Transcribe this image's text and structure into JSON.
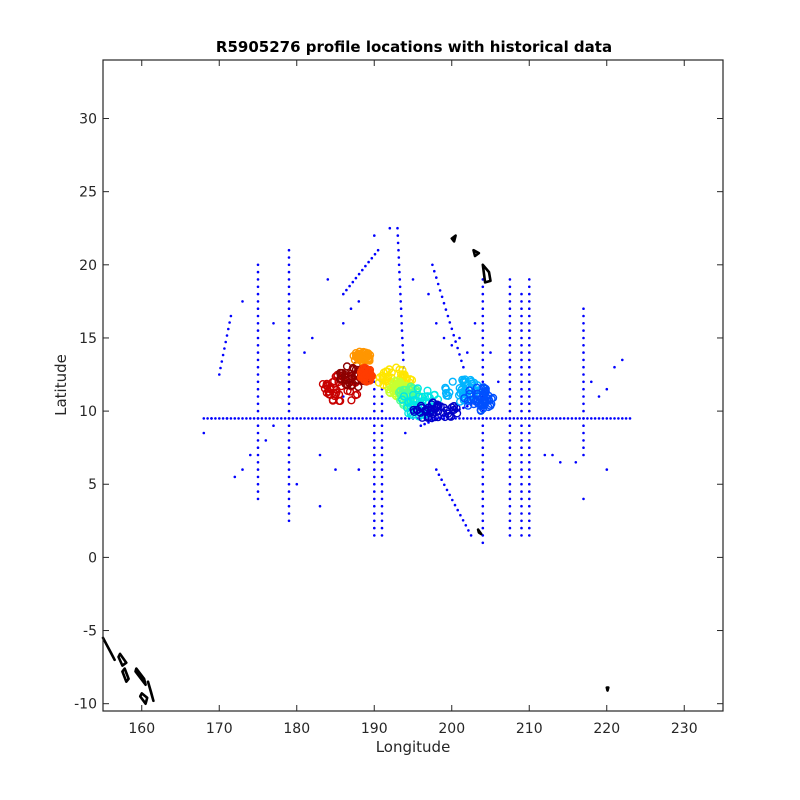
{
  "chart_data": {
    "type": "scatter",
    "title": "R5905276 profile locations with historical data",
    "xlabel": "Longitude",
    "ylabel": "Latitude",
    "xlim": [
      155,
      235
    ],
    "ylim": [
      -10.5,
      34
    ],
    "x_ticks": [
      160,
      170,
      180,
      190,
      200,
      210,
      220,
      230
    ],
    "y_ticks": [
      -10,
      -5,
      0,
      5,
      10,
      15,
      20,
      25,
      30
    ],
    "x_tick_labels": [
      "160",
      "170",
      "180",
      "190",
      "200",
      "210",
      "220",
      "230"
    ],
    "y_tick_labels": [
      "-10",
      "-5",
      "0",
      "5",
      "10",
      "15",
      "20",
      "25",
      "30"
    ],
    "grid": false,
    "colors": {
      "historical": "#0000ff",
      "coast": "#000000",
      "profile_colormap": [
        "#0000c8",
        "#0050ff",
        "#00b4ff",
        "#00e6e6",
        "#50ff90",
        "#c8ff30",
        "#ffe600",
        "#ff9600",
        "#ff3c00",
        "#c80000",
        "#8c0000"
      ]
    },
    "historical_tracks": {
      "horizontal": [
        {
          "lat": 9.5,
          "lon": [
            168,
            223
          ]
        }
      ],
      "vertical": [
        {
          "lon": 175,
          "lat": [
            4,
            20
          ]
        },
        {
          "lon": 179,
          "lat": [
            2.5,
            21
          ]
        },
        {
          "lon": 190,
          "lat": [
            1.5,
            12
          ]
        },
        {
          "lon": 191,
          "lat": [
            1.5,
            12
          ]
        },
        {
          "lon": 204,
          "lat": [
            1,
            19
          ]
        },
        {
          "lon": 207.5,
          "lat": [
            1.5,
            19
          ]
        },
        {
          "lon": 209,
          "lat": [
            1.5,
            18
          ]
        },
        {
          "lon": 210,
          "lat": [
            1.5,
            19
          ]
        },
        {
          "lon": 217,
          "lat": [
            7,
            17
          ]
        }
      ],
      "diagonal": [
        {
          "from": [
            170,
            12.5
          ],
          "to": [
            171.5,
            16.5
          ]
        },
        {
          "from": [
            198,
            6
          ],
          "to": [
            202.5,
            1.5
          ]
        },
        {
          "from": [
            196,
            9
          ],
          "to": [
            205,
            11
          ]
        },
        {
          "from": [
            186,
            18
          ],
          "to": [
            190.5,
            21
          ]
        },
        {
          "from": [
            193,
            22.5
          ],
          "to": [
            194,
            10.5
          ]
        },
        {
          "from": [
            197.5,
            20
          ],
          "to": [
            201.5,
            13
          ]
        }
      ],
      "scattered": [
        [
          173,
          17.5
        ],
        [
          177,
          16
        ],
        [
          181,
          14
        ],
        [
          182,
          15
        ],
        [
          184,
          19
        ],
        [
          186,
          16
        ],
        [
          187,
          17
        ],
        [
          188,
          17.5
        ],
        [
          190,
          22
        ],
        [
          192,
          22.5
        ],
        [
          195,
          19
        ],
        [
          197,
          18
        ],
        [
          198,
          16
        ],
        [
          199,
          15
        ],
        [
          200,
          14.5
        ],
        [
          201,
          15
        ],
        [
          202,
          14
        ],
        [
          203,
          16
        ],
        [
          205,
          14
        ],
        [
          206,
          12
        ],
        [
          212,
          7
        ],
        [
          213,
          7
        ],
        [
          214,
          6.5
        ],
        [
          216,
          6.5
        ],
        [
          218,
          12
        ],
        [
          219,
          11
        ],
        [
          220,
          11.5
        ],
        [
          221,
          13
        ],
        [
          222,
          13.5
        ],
        [
          220,
          6
        ],
        [
          217,
          4
        ],
        [
          172,
          5.5
        ],
        [
          173,
          6
        ],
        [
          174,
          7
        ],
        [
          176,
          8
        ],
        [
          177,
          9
        ],
        [
          183,
          7
        ],
        [
          185,
          6
        ],
        [
          188,
          6
        ],
        [
          180,
          5
        ],
        [
          183,
          3.5
        ],
        [
          171,
          9.5
        ],
        [
          168,
          8.5
        ],
        [
          169,
          9.5
        ],
        [
          186,
          11
        ],
        [
          194,
          8.5
        ]
      ]
    },
    "profile_clusters": [
      {
        "lon": 185.5,
        "lat": 11.5,
        "rx": 2.5,
        "ry": 1.0,
        "color": "#c80000"
      },
      {
        "lon": 187.5,
        "lat": 12.4,
        "rx": 2.0,
        "ry": 0.8,
        "color": "#8c0000"
      },
      {
        "lon": 188.5,
        "lat": 13.7,
        "rx": 1.2,
        "ry": 0.4,
        "color": "#ff9600"
      },
      {
        "lon": 189.0,
        "lat": 12.5,
        "rx": 0.8,
        "ry": 0.5,
        "color": "#ff3c00"
      },
      {
        "lon": 192.7,
        "lat": 12.1,
        "rx": 2.2,
        "ry": 0.9,
        "color": "#ffe600"
      },
      {
        "lon": 193.2,
        "lat": 11.5,
        "rx": 1.5,
        "ry": 0.6,
        "color": "#c8ff30"
      },
      {
        "lon": 194.5,
        "lat": 11.0,
        "rx": 1.5,
        "ry": 0.7,
        "color": "#50ff90"
      },
      {
        "lon": 196.0,
        "lat": 10.6,
        "rx": 2.5,
        "ry": 1.0,
        "color": "#00e6e6"
      },
      {
        "lon": 198.0,
        "lat": 10.0,
        "rx": 3.0,
        "ry": 0.6,
        "color": "#0000c8"
      },
      {
        "lon": 201.5,
        "lat": 11.4,
        "rx": 2.5,
        "ry": 0.8,
        "color": "#00b4ff"
      },
      {
        "lon": 203.5,
        "lat": 10.8,
        "rx": 2.0,
        "ry": 0.9,
        "color": "#0050ff"
      }
    ],
    "coastlines": [
      [
        [
          200,
          21.8
        ],
        [
          200.5,
          22
        ],
        [
          200.3,
          21.6
        ],
        [
          200,
          21.8
        ]
      ],
      [
        [
          202.8,
          21
        ],
        [
          203.5,
          20.8
        ],
        [
          203,
          20.6
        ],
        [
          202.8,
          21
        ]
      ],
      [
        [
          204.0,
          20.0
        ],
        [
          204.8,
          19.5
        ],
        [
          205,
          18.9
        ],
        [
          204.3,
          18.8
        ],
        [
          204.0,
          20.0
        ]
      ],
      [
        [
          155,
          -5.5
        ],
        [
          156,
          -6.5
        ],
        [
          156.5,
          -7
        ],
        [
          155.5,
          -6
        ],
        [
          155,
          -5.5
        ]
      ],
      [
        [
          157,
          -6.8
        ],
        [
          157.5,
          -7.4
        ],
        [
          158,
          -7.2
        ],
        [
          157.2,
          -6.6
        ],
        [
          157,
          -6.8
        ]
      ],
      [
        [
          157.5,
          -7.8
        ],
        [
          158,
          -8.5
        ],
        [
          158.3,
          -8.3
        ],
        [
          157.8,
          -7.6
        ],
        [
          157.5,
          -7.8
        ]
      ],
      [
        [
          159.2,
          -7.8
        ],
        [
          160.5,
          -8.7
        ],
        [
          160.3,
          -8.3
        ],
        [
          159.3,
          -7.6
        ],
        [
          159.2,
          -7.8
        ]
      ],
      [
        [
          160.8,
          -8.5
        ],
        [
          161.5,
          -9.8
        ],
        [
          161.2,
          -9.2
        ],
        [
          160.8,
          -8.5
        ]
      ],
      [
        [
          159.8,
          -9.5
        ],
        [
          160.5,
          -10
        ],
        [
          160.7,
          -9.6
        ],
        [
          160,
          -9.3
        ],
        [
          159.8,
          -9.5
        ]
      ],
      [
        [
          203.4,
          1.9
        ],
        [
          203.8,
          1.6
        ],
        [
          203.5,
          1.7
        ],
        [
          203.4,
          1.9
        ]
      ],
      [
        [
          220,
          -8.9
        ],
        [
          220.2,
          -8.9
        ],
        [
          220.1,
          -9.1
        ],
        [
          220,
          -8.9
        ]
      ]
    ]
  }
}
